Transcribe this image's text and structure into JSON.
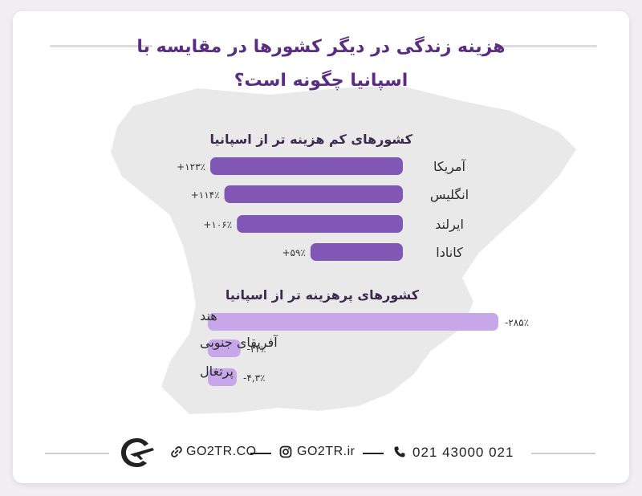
{
  "title": {
    "line1": "هزینه زندگی در دیگر کشورها در مقایسه با",
    "line2": "اسپانیا چگونه است؟"
  },
  "chart_data": [
    {
      "type": "bar",
      "title": "کشورهای کم هزینه تر از اسپانیا",
      "categories": [
        "آمریکا",
        "انگلیس",
        "ایرلند",
        "کانادا"
      ],
      "values": [
        123,
        114,
        106,
        59
      ],
      "value_labels": [
        "+۱۲۳٪",
        "+۱۱۴٪",
        "+۱۰۶٪",
        "+۵۹٪"
      ],
      "color": "#8157b6"
    },
    {
      "type": "bar",
      "title": "کشورهای پرهزینه تر از اسپانیا",
      "categories": [
        "هند",
        "آفریقای جنوبی",
        "پرتغال"
      ],
      "values": [
        -285,
        -32,
        -4.3
      ],
      "value_labels": [
        "-۲۸۵٪",
        "-۳۲٪",
        "-۴,۳٪"
      ],
      "color": "#c7a6ea"
    }
  ],
  "footer": {
    "site": "GO2TR.CO",
    "instagram": "GO2TR.ir",
    "phone": "021 43000 021"
  },
  "colors": {
    "title": "#5a2d82",
    "map": "#e9e9e9",
    "low_cost_bar": "#8157b6",
    "high_cost_bar": "#c7a6ea"
  },
  "icons": [
    "link-icon",
    "instagram-icon",
    "phone-icon",
    "airplane-logo-icon"
  ]
}
